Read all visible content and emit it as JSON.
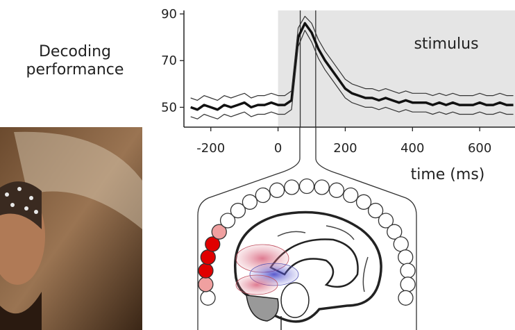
{
  "chart_data": {
    "type": "line",
    "ylabel": "Decoding performance",
    "xlabel": "time (ms)",
    "span_label": "stimulus",
    "span_start": 0,
    "span_color": "#e5e5e5",
    "vlines": [
      66,
      112
    ],
    "x": [
      -260,
      -240,
      -220,
      -200,
      -180,
      -160,
      -140,
      -120,
      -100,
      -80,
      -60,
      -40,
      -20,
      0,
      20,
      40,
      60,
      80,
      100,
      120,
      140,
      160,
      180,
      200,
      220,
      240,
      260,
      280,
      300,
      320,
      340,
      360,
      380,
      400,
      420,
      440,
      460,
      480,
      500,
      520,
      540,
      560,
      580,
      600,
      620,
      640,
      660,
      680,
      700
    ],
    "series": [
      {
        "color": "#111111",
        "width": 3.5,
        "values": [
          50,
          49,
          51,
          50,
          49,
          51,
          50,
          51,
          52,
          50,
          51,
          51,
          52,
          51,
          51,
          53,
          80,
          86,
          82,
          75,
          70,
          66,
          62,
          58,
          56,
          55,
          54,
          54,
          53,
          54,
          53,
          52,
          53,
          52,
          52,
          52,
          51,
          52,
          51,
          52,
          51,
          51,
          51,
          52,
          51,
          51,
          52,
          51,
          51
        ]
      },
      {
        "color": "#333333",
        "width": 1.2,
        "values": [
          54,
          53,
          55,
          54,
          53,
          55,
          54,
          55,
          56,
          54,
          55,
          55,
          56,
          55,
          55,
          57,
          84,
          89,
          86,
          79,
          74,
          70,
          66,
          62,
          60,
          59,
          58,
          58,
          57,
          58,
          57,
          56,
          57,
          56,
          56,
          56,
          55,
          56,
          55,
          56,
          55,
          55,
          55,
          56,
          55,
          55,
          56,
          55,
          55
        ]
      },
      {
        "color": "#333333",
        "width": 1.2,
        "values": [
          46,
          45,
          47,
          46,
          45,
          47,
          46,
          47,
          48,
          46,
          47,
          47,
          48,
          47,
          47,
          49,
          76,
          83,
          78,
          71,
          66,
          62,
          58,
          54,
          52,
          51,
          50,
          50,
          49,
          50,
          49,
          48,
          49,
          48,
          48,
          48,
          47,
          48,
          47,
          48,
          47,
          47,
          47,
          48,
          47,
          47,
          48,
          47,
          47
        ]
      }
    ],
    "xlim": [
      -280,
      705
    ],
    "ylim": [
      41.5,
      91.5
    ],
    "xticks": [
      -200,
      0,
      200,
      400,
      600
    ],
    "yticks": [
      50,
      70,
      90
    ]
  }
}
